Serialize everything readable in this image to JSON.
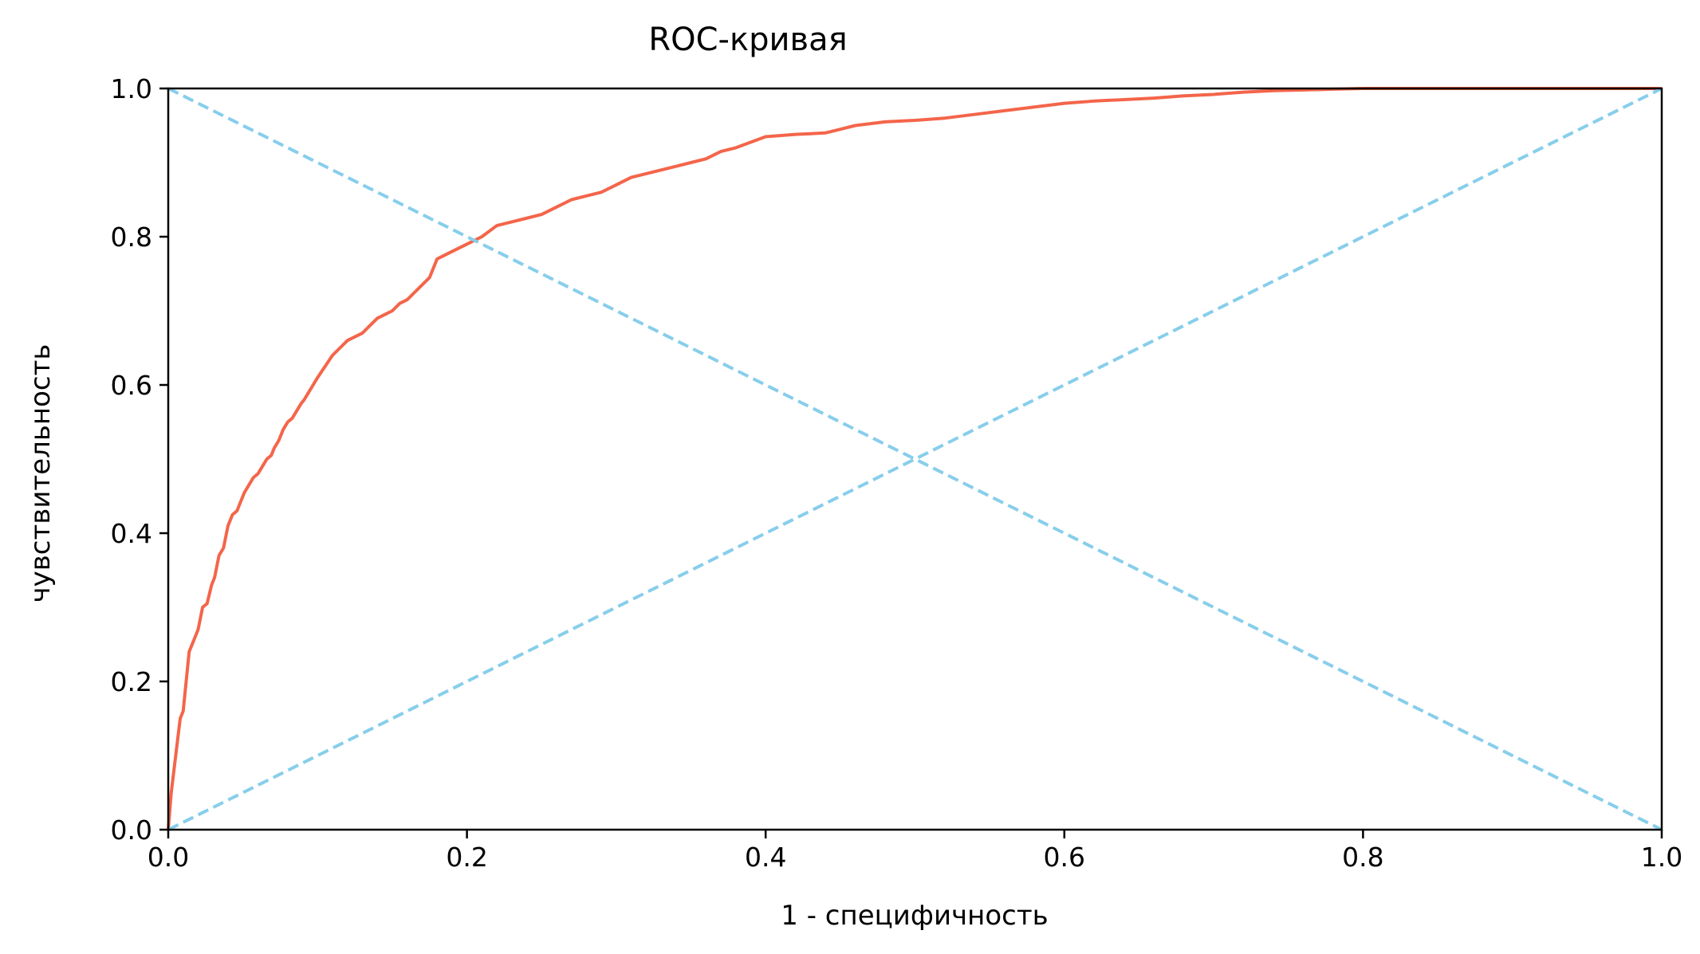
{
  "chart_data": {
    "type": "line",
    "title": "ROC-кривая",
    "xlabel": "1 - специфичность",
    "ylabel": "чувствительность",
    "xlim": [
      0.0,
      1.0
    ],
    "ylim": [
      0.0,
      1.0
    ],
    "xticks": [
      "0.0",
      "0.2",
      "0.4",
      "0.6",
      "0.8",
      "1.0"
    ],
    "yticks": [
      "0.0",
      "0.2",
      "0.4",
      "0.6",
      "0.8",
      "1.0"
    ],
    "grid": false,
    "colors": {
      "roc": "#f4654a",
      "reference": "#87ceeb"
    },
    "series": [
      {
        "style": "solid",
        "x": [
          0.0,
          0.002,
          0.005,
          0.008,
          0.01,
          0.012,
          0.014,
          0.016,
          0.018,
          0.02,
          0.023,
          0.026,
          0.029,
          0.031,
          0.034,
          0.037,
          0.04,
          0.043,
          0.046,
          0.049,
          0.051,
          0.054,
          0.057,
          0.06,
          0.063,
          0.066,
          0.069,
          0.071,
          0.074,
          0.077,
          0.08,
          0.083,
          0.086,
          0.089,
          0.091,
          0.094,
          0.097,
          0.1,
          0.105,
          0.11,
          0.115,
          0.12,
          0.125,
          0.13,
          0.135,
          0.14,
          0.145,
          0.15,
          0.155,
          0.16,
          0.165,
          0.17,
          0.175,
          0.18,
          0.19,
          0.2,
          0.21,
          0.22,
          0.23,
          0.24,
          0.25,
          0.26,
          0.27,
          0.28,
          0.29,
          0.3,
          0.31,
          0.32,
          0.33,
          0.34,
          0.35,
          0.36,
          0.37,
          0.38,
          0.4,
          0.42,
          0.44,
          0.45,
          0.46,
          0.48,
          0.5,
          0.52,
          0.54,
          0.56,
          0.58,
          0.6,
          0.62,
          0.64,
          0.66,
          0.68,
          0.7,
          0.72,
          0.74,
          0.76,
          0.78,
          0.8,
          0.85,
          0.9,
          0.95,
          1.0
        ],
        "y": [
          0.0,
          0.05,
          0.1,
          0.15,
          0.16,
          0.2,
          0.24,
          0.25,
          0.26,
          0.27,
          0.3,
          0.305,
          0.33,
          0.34,
          0.37,
          0.38,
          0.41,
          0.425,
          0.43,
          0.445,
          0.455,
          0.465,
          0.475,
          0.48,
          0.49,
          0.5,
          0.505,
          0.515,
          0.525,
          0.54,
          0.55,
          0.555,
          0.565,
          0.575,
          0.58,
          0.59,
          0.6,
          0.61,
          0.625,
          0.64,
          0.65,
          0.66,
          0.665,
          0.67,
          0.68,
          0.69,
          0.695,
          0.7,
          0.71,
          0.715,
          0.725,
          0.735,
          0.745,
          0.77,
          0.78,
          0.79,
          0.8,
          0.815,
          0.82,
          0.825,
          0.83,
          0.84,
          0.85,
          0.855,
          0.86,
          0.87,
          0.88,
          0.885,
          0.89,
          0.895,
          0.9,
          0.905,
          0.915,
          0.92,
          0.935,
          0.938,
          0.94,
          0.945,
          0.95,
          0.955,
          0.957,
          0.96,
          0.965,
          0.97,
          0.975,
          0.98,
          0.983,
          0.985,
          0.987,
          0.99,
          0.992,
          0.995,
          0.997,
          0.998,
          0.999,
          1.0,
          1.0,
          1.0,
          1.0,
          1.0
        ]
      },
      {
        "style": "dashed",
        "x": [
          0.0,
          1.0
        ],
        "y": [
          0.0,
          1.0
        ]
      },
      {
        "style": "dashed",
        "x": [
          0.0,
          1.0
        ],
        "y": [
          1.0,
          0.0
        ]
      }
    ]
  }
}
